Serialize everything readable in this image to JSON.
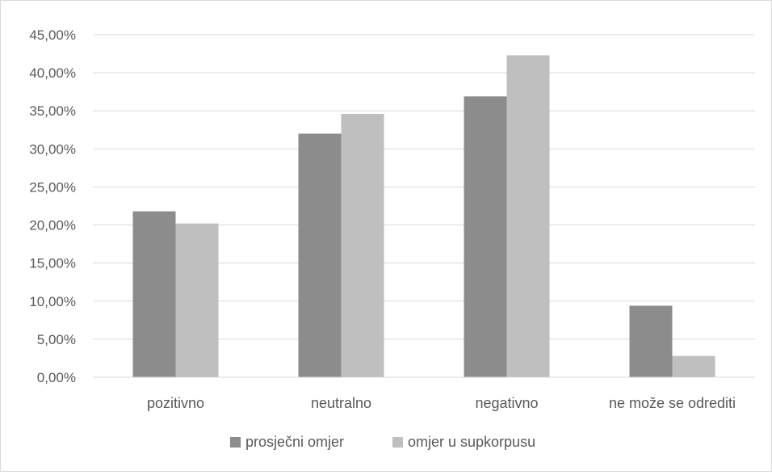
{
  "chart_data": {
    "type": "bar",
    "categories": [
      "pozitivno",
      "neutralno",
      "negativno",
      "ne može se odrediti"
    ],
    "series": [
      {
        "name": "prosječni omjer",
        "values": [
          21.8,
          32.0,
          36.9,
          9.4
        ],
        "color": "#8c8c8c"
      },
      {
        "name": "omjer u supkorpusu",
        "values": [
          20.2,
          34.6,
          42.3,
          2.8
        ],
        "color": "#bfbfbf"
      }
    ],
    "y_ticks": [
      "0,00%",
      "5,00%",
      "10,00%",
      "15,00%",
      "20,00%",
      "25,00%",
      "30,00%",
      "35,00%",
      "40,00%",
      "45,00%"
    ],
    "ylim": [
      0,
      45
    ],
    "grid": true,
    "legend_position": "bottom"
  }
}
